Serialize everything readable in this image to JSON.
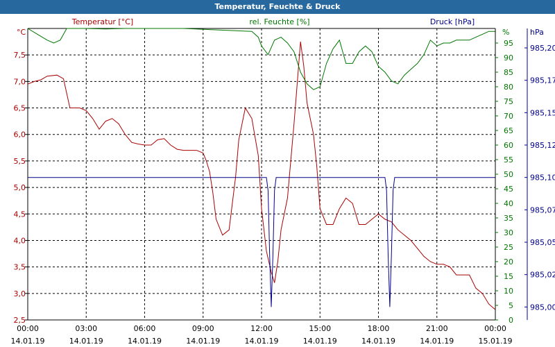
{
  "window": {
    "title": "Temperatur, Feuchte & Druck"
  },
  "chart_data": {
    "type": "line",
    "title": "Temperatur, Feuchte & Druck",
    "grid": true,
    "colors": {
      "temperature": "#aa0000",
      "humidity": "#007700",
      "pressure": "#00008b",
      "titlebar": "#27699f"
    },
    "x_ticks": [
      {
        "time": "00:00",
        "date": "14.01.19"
      },
      {
        "time": "03:00",
        "date": "14.01.19"
      },
      {
        "time": "06:00",
        "date": "14.01.19"
      },
      {
        "time": "09:00",
        "date": "14.01.19"
      },
      {
        "time": "12:00",
        "date": "14.01.19"
      },
      {
        "time": "15:00",
        "date": "14.01.19"
      },
      {
        "time": "18:00",
        "date": "14.01.19"
      },
      {
        "time": "21:00",
        "date": "14.01.19"
      },
      {
        "time": "00:00",
        "date": "15.01.19"
      }
    ],
    "axes": {
      "temperature": {
        "label": "Temperatur [°C]",
        "unit": "°C",
        "range": [
          2.5,
          8.0
        ],
        "ticks": [
          "2,5",
          "3,0",
          "3,5",
          "4,0",
          "4,5",
          "5,0",
          "5,5",
          "6,0",
          "6,5",
          "7,0",
          "7,5"
        ]
      },
      "humidity": {
        "label": "rel. Feuchte [%]",
        "unit": "%",
        "range": [
          0,
          100
        ],
        "ticks": [
          "0",
          "5",
          "10",
          "15",
          "20",
          "25",
          "30",
          "35",
          "40",
          "45",
          "50",
          "55",
          "60",
          "65",
          "70",
          "75",
          "80",
          "85",
          "90",
          "95"
        ]
      },
      "pressure": {
        "label": "Druck [hPa]",
        "unit": "hPa",
        "range": [
          984.99,
          985.215
        ],
        "ticks": [
          {
            "label": "985,00",
            "value": 985.0
          },
          {
            "label": "985,02",
            "value": 985.025
          },
          {
            "label": "985,05",
            "value": 985.05
          },
          {
            "label": "985,07",
            "value": 985.075
          },
          {
            "label": "985,10",
            "value": 985.1
          },
          {
            "label": "985,12",
            "value": 985.125
          },
          {
            "label": "985,15",
            "value": 985.15
          },
          {
            "label": "985,17",
            "value": 985.175
          },
          {
            "label": "985,20",
            "value": 985.2
          }
        ]
      }
    },
    "series": [
      {
        "name": "Temperatur [°C]",
        "axis": "temperature",
        "x": [
          "00:00",
          "00:20",
          "00:40",
          "01:00",
          "01:30",
          "01:50",
          "02:10",
          "02:40",
          "03:00",
          "03:20",
          "03:40",
          "04:00",
          "04:20",
          "04:40",
          "05:00",
          "05:20",
          "05:40",
          "06:00",
          "06:20",
          "06:40",
          "07:00",
          "07:20",
          "07:40",
          "08:00",
          "08:20",
          "08:40",
          "09:00",
          "09:10",
          "09:20",
          "09:30",
          "09:40",
          "10:00",
          "10:20",
          "10:40",
          "10:50",
          "11:10",
          "11:30",
          "11:50",
          "12:00",
          "12:15",
          "12:30",
          "12:40",
          "12:50",
          "13:00",
          "13:20",
          "13:40",
          "14:00",
          "14:10",
          "14:20",
          "14:40",
          "14:50",
          "15:00",
          "15:20",
          "15:40",
          "16:00",
          "16:20",
          "16:40",
          "17:00",
          "17:20",
          "17:40",
          "18:00",
          "18:20",
          "18:40",
          "19:00",
          "19:20",
          "19:40",
          "20:00",
          "20:20",
          "20:40",
          "21:00",
          "21:20",
          "21:40",
          "22:00",
          "22:20",
          "22:40",
          "23:00",
          "23:20",
          "23:40",
          "23:59"
        ],
        "values": [
          6.95,
          7.0,
          7.03,
          7.1,
          7.12,
          7.05,
          6.5,
          6.5,
          6.45,
          6.3,
          6.1,
          6.25,
          6.3,
          6.2,
          6.0,
          5.85,
          5.82,
          5.8,
          5.8,
          5.9,
          5.92,
          5.8,
          5.72,
          5.7,
          5.7,
          5.7,
          5.65,
          5.5,
          5.3,
          4.9,
          4.4,
          4.1,
          4.2,
          5.2,
          5.9,
          6.5,
          6.3,
          5.6,
          4.6,
          3.8,
          3.4,
          3.2,
          3.6,
          4.2,
          4.8,
          6.2,
          7.75,
          7.3,
          6.6,
          6.0,
          5.4,
          4.6,
          4.3,
          4.3,
          4.6,
          4.8,
          4.7,
          4.3,
          4.3,
          4.4,
          4.5,
          4.4,
          4.35,
          4.2,
          4.1,
          4.0,
          3.85,
          3.7,
          3.6,
          3.55,
          3.55,
          3.5,
          3.35,
          3.35,
          3.35,
          3.1,
          3.0,
          2.8,
          2.7
        ]
      },
      {
        "name": "rel. Feuchte [%]",
        "axis": "humidity",
        "x": [
          "00:00",
          "00:30",
          "01:00",
          "01:20",
          "01:40",
          "02:00",
          "03:00",
          "04:00",
          "05:00",
          "06:00",
          "07:00",
          "07:59",
          "11:30",
          "11:50",
          "12:00",
          "12:20",
          "12:40",
          "13:00",
          "13:20",
          "13:40",
          "14:00",
          "14:20",
          "14:40",
          "15:00",
          "15:20",
          "15:40",
          "16:00",
          "16:20",
          "16:40",
          "17:00",
          "17:20",
          "17:40",
          "18:00",
          "18:20",
          "18:40",
          "19:00",
          "19:20",
          "19:40",
          "20:00",
          "20:20",
          "20:40",
          "21:00",
          "21:20",
          "21:40",
          "22:00",
          "22:20",
          "22:40",
          "23:00",
          "23:20",
          "23:40",
          "23:59"
        ],
        "values": [
          100,
          98,
          96,
          95,
          96,
          100,
          100,
          99.8,
          100,
          100,
          100,
          100,
          99,
          97,
          94,
          91,
          96,
          97,
          95,
          92,
          85,
          81,
          79,
          80,
          88,
          93,
          96,
          88,
          88,
          92,
          94,
          92,
          87,
          85,
          82,
          81,
          84,
          86,
          88,
          91,
          96,
          94,
          95,
          95,
          96,
          96,
          96,
          97,
          98,
          99,
          99
        ]
      },
      {
        "name": "Druck [hPa]",
        "axis": "pressure",
        "x": [
          "00:00",
          "12:15",
          "12:20",
          "12:25",
          "12:30",
          "12:35",
          "12:40",
          "12:45",
          "12:50",
          "18:20",
          "18:25",
          "18:30",
          "18:35",
          "18:40",
          "18:45",
          "18:50",
          "23:59"
        ],
        "values": [
          985.1,
          985.1,
          985.09,
          985.04,
          985.0,
          985.04,
          985.09,
          985.1,
          985.1,
          985.1,
          985.09,
          985.04,
          985.0,
          985.04,
          985.09,
          985.1,
          985.1
        ]
      }
    ]
  }
}
